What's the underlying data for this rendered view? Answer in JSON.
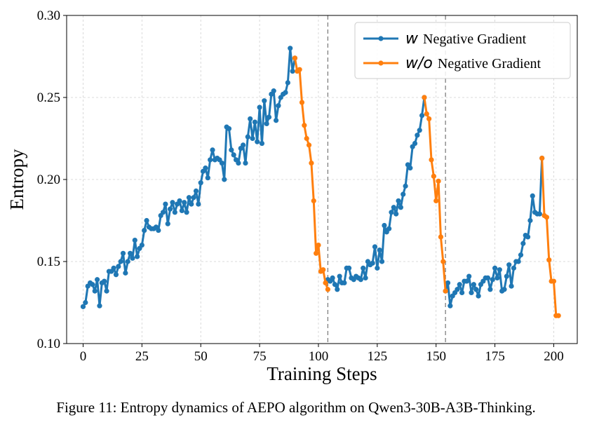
{
  "figure": {
    "caption": "Figure 11: Entropy dynamics of AEPO algorithm on Qwen3-30B-A3B-Thinking."
  },
  "chart_data": {
    "type": "line",
    "title": "",
    "xlabel": "Training Steps",
    "ylabel": "Entropy",
    "xlim": [
      -7,
      210
    ],
    "ylim": [
      0.1,
      0.3
    ],
    "xticks": [
      0,
      25,
      50,
      75,
      100,
      125,
      150,
      175,
      200
    ],
    "yticks": [
      "0.10",
      "0.15",
      "0.20",
      "0.25",
      "0.30"
    ],
    "grid": true,
    "legend_position": "top-right",
    "vlines": [
      104,
      154
    ],
    "series": [
      {
        "name": "Negative Gradient",
        "legend_prefix": "w",
        "color": "#1f77b4",
        "segments": [
          {
            "x": [
              0,
              1,
              2,
              3,
              4,
              5,
              6,
              7,
              8,
              9,
              10,
              11,
              12,
              13,
              14,
              15,
              16,
              17,
              18,
              19,
              20,
              21,
              22,
              23,
              24,
              25,
              26,
              27,
              28,
              29,
              30,
              31,
              32,
              33,
              34,
              35,
              36,
              37,
              38,
              39,
              40,
              41,
              42,
              43,
              44,
              45,
              46,
              47,
              48,
              49,
              50,
              51,
              52,
              53,
              54,
              55,
              56,
              57,
              58,
              59,
              60,
              61,
              62,
              63,
              64,
              65,
              66,
              67,
              68,
              69,
              70,
              71,
              72,
              73,
              74,
              75,
              76,
              77,
              78,
              79,
              80,
              81,
              82,
              83,
              84,
              85,
              86,
              87,
              88,
              89,
              90
            ],
            "y": [
              0.1225,
              0.125,
              0.135,
              0.137,
              0.136,
              0.132,
              0.139,
              0.123,
              0.137,
              0.138,
              0.132,
              0.144,
              0.144,
              0.146,
              0.142,
              0.147,
              0.15,
              0.155,
              0.143,
              0.15,
              0.155,
              0.152,
              0.163,
              0.153,
              0.158,
              0.16,
              0.169,
              0.175,
              0.171,
              0.17,
              0.17,
              0.171,
              0.169,
              0.178,
              0.18,
              0.185,
              0.173,
              0.182,
              0.186,
              0.18,
              0.185,
              0.187,
              0.181,
              0.186,
              0.18,
              0.189,
              0.185,
              0.189,
              0.193,
              0.185,
              0.198,
              0.205,
              0.207,
              0.201,
              0.212,
              0.218,
              0.212,
              0.213,
              0.212,
              0.21,
              0.2,
              0.232,
              0.231,
              0.218,
              0.215,
              0.212,
              0.21,
              0.219,
              0.221,
              0.21,
              0.226,
              0.237,
              0.225,
              0.235,
              0.223,
              0.244,
              0.222,
              0.248,
              0.234,
              0.238,
              0.252,
              0.254,
              0.236,
              0.245,
              0.25,
              0.252,
              0.253,
              0.259,
              0.28,
              0.266,
              0.274
            ]
          },
          {
            "x": [
              104,
              105,
              106,
              107,
              108,
              109,
              110,
              111,
              112,
              113,
              114,
              115,
              116,
              117,
              118,
              119,
              120,
              121,
              122,
              123,
              124,
              125,
              126,
              127,
              128,
              129,
              130,
              131,
              132,
              133,
              134,
              135,
              136,
              137,
              138,
              139,
              140,
              141,
              142,
              143,
              144,
              145
            ],
            "y": [
              0.139,
              0.138,
              0.14,
              0.136,
              0.133,
              0.141,
              0.137,
              0.137,
              0.146,
              0.146,
              0.14,
              0.139,
              0.141,
              0.14,
              0.139,
              0.146,
              0.14,
              0.15,
              0.148,
              0.149,
              0.159,
              0.146,
              0.157,
              0.15,
              0.172,
              0.168,
              0.17,
              0.18,
              0.183,
              0.179,
              0.187,
              0.183,
              0.191,
              0.196,
              0.209,
              0.207,
              0.22,
              0.222,
              0.227,
              0.23,
              0.239,
              0.25
            ]
          },
          {
            "x": [
              154,
              155,
              156,
              157,
              158,
              159,
              160,
              161,
              162,
              163,
              164,
              165,
              166,
              167,
              168,
              169,
              170,
              171,
              172,
              173,
              174,
              175,
              176,
              177,
              178,
              179,
              180,
              181,
              182,
              183,
              184,
              185,
              186,
              187,
              188,
              189,
              190,
              191,
              192,
              193,
              194,
              195
            ],
            "y": [
              0.132,
              0.137,
              0.123,
              0.129,
              0.131,
              0.133,
              0.136,
              0.131,
              0.138,
              0.138,
              0.141,
              0.131,
              0.136,
              0.133,
              0.129,
              0.136,
              0.138,
              0.14,
              0.14,
              0.133,
              0.139,
              0.146,
              0.14,
              0.145,
              0.132,
              0.133,
              0.141,
              0.148,
              0.135,
              0.146,
              0.15,
              0.15,
              0.154,
              0.161,
              0.166,
              0.165,
              0.175,
              0.19,
              0.18,
              0.179,
              0.179,
              0.213
            ]
          }
        ]
      },
      {
        "name": "Negative Gradient",
        "legend_prefix": "w/o",
        "color": "#ff7f0e",
        "segments": [
          {
            "x": [
              90,
              91,
              92,
              93,
              94,
              95,
              96,
              97,
              98,
              99,
              100,
              101,
              102,
              103,
              104
            ],
            "y": [
              0.274,
              0.266,
              0.267,
              0.247,
              0.233,
              0.225,
              0.221,
              0.21,
              0.187,
              0.155,
              0.16,
              0.144,
              0.145,
              0.137,
              0.133
            ]
          },
          {
            "x": [
              145,
              146,
              147,
              148,
              149,
              150,
              151,
              152,
              153,
              154
            ],
            "y": [
              0.25,
              0.24,
              0.237,
              0.212,
              0.202,
              0.187,
              0.199,
              0.165,
              0.15,
              0.132
            ]
          },
          {
            "x": [
              195,
              196,
              197,
              198,
              199,
              200,
              201,
              202
            ],
            "y": [
              0.213,
              0.178,
              0.177,
              0.151,
              0.138,
              0.138,
              0.117,
              0.117
            ]
          }
        ]
      }
    ]
  }
}
